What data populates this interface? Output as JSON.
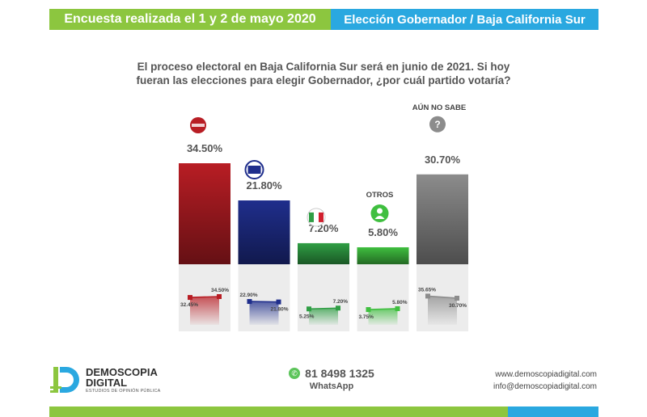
{
  "header": {
    "left_text": "Encuesta realizada el 1 y 2 de mayo 2020",
    "right_text": "Elección Gobernador / Baja California Sur"
  },
  "question": {
    "line1": "El proceso electoral en Baja California Sur será en junio de 2021. Si hoy",
    "line2": "fueran las elecciones para elegir Gobernador, ¿por cuál partido votaría?"
  },
  "chart_data": {
    "type": "bar",
    "categories": [
      "morena",
      "PAN",
      "PRI",
      "OTROS",
      "AÚN NO SABE"
    ],
    "values": [
      34.5,
      21.8,
      7.2,
      5.8,
      30.7
    ],
    "value_labels": [
      "34.50%",
      "21.80%",
      "7.20%",
      "5.80%",
      "30.70%"
    ],
    "category_labels": [
      "",
      "",
      "",
      "OTROS",
      "AÚN NO SABE"
    ],
    "icons": [
      "morena-logo-icon",
      "pan-logo-icon",
      "pri-logo-icon",
      "person-icon",
      "question-icon"
    ],
    "colors": [
      "#b81d24",
      "#1f2e8c",
      "#2f9e44",
      "#3fbf3f",
      "#8c8c8c"
    ],
    "trend": {
      "previous": [
        32.45,
        22.9,
        5.25,
        3.75,
        35.65
      ],
      "current": [
        34.5,
        21.8,
        7.2,
        5.8,
        30.7
      ],
      "previous_labels": [
        "32.45%",
        "22.90%",
        "5.25%",
        "3.75%",
        "35.65%"
      ],
      "current_labels": [
        "34.50%",
        "21.80%",
        "7.20%",
        "5.80%",
        "30.70%"
      ]
    }
  },
  "footer": {
    "brand_name": "DEMOSCOPIA DIGITAL",
    "brand_tagline": "ESTUDIOS DE OPINIÓN PÚBLICA",
    "phone": "81 8498 1325",
    "whatsapp_label": "WhatsApp",
    "website": "www.demoscopiadigital.com",
    "email": "info@demoscopiadigital.com"
  }
}
